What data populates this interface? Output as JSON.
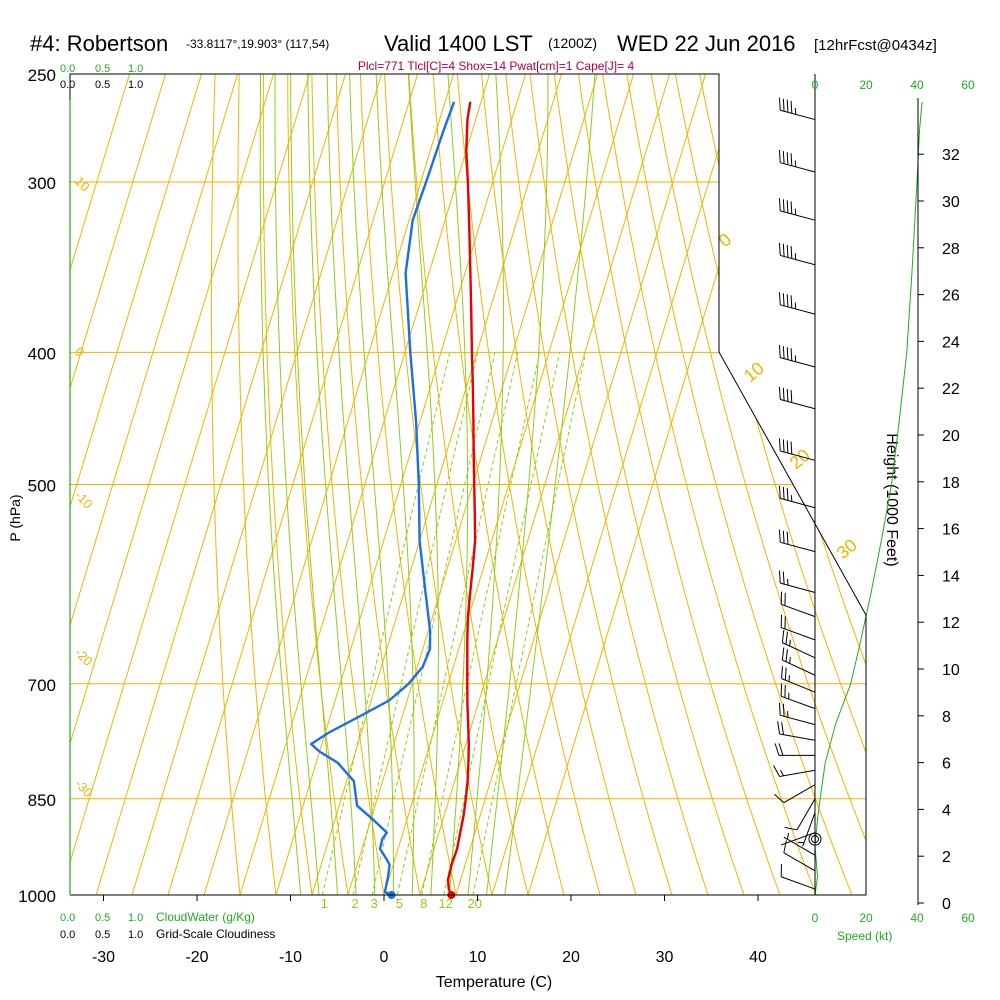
{
  "header": {
    "station": "#4: Robertson",
    "coords": "-33.8117°,19.903° (117,54)",
    "valid": "Valid 1400 LST",
    "utc": "(1200Z)",
    "date": "WED 22 Jun 2016",
    "forecast": "[12hrFcst@0434z]",
    "indices": "Plcl=771 Tlcl[C]=4 Shox=14 Pwat[cm]=1 Cape[J]= 4"
  },
  "colors": {
    "isotherm": "#f2b300",
    "dry_adiabat": "#f2b300",
    "moist_adiabat": "#8fcc1a",
    "mixing_ratio": "#8fcc1a",
    "temperature": "#e60000",
    "dewpoint": "#1a6ee6",
    "cloud": "#22aa22",
    "indices": "#b0003a"
  },
  "chart_data": {
    "type": "skew-t",
    "ylabel": "P (hPa)",
    "xlabel": "Temperature (C)",
    "right_label": "Height (1000 Feet)",
    "pressure_ticks": [
      250,
      300,
      400,
      500,
      700,
      850,
      1000
    ],
    "temperature_ticks": [
      -30,
      -20,
      -10,
      0,
      10,
      20,
      30,
      40
    ],
    "height_ticks": [
      0,
      2,
      4,
      6,
      8,
      10,
      12,
      14,
      16,
      18,
      20,
      22,
      24,
      26,
      28,
      30,
      32
    ],
    "xlim": [
      -34,
      46
    ],
    "plim": [
      250,
      1000
    ],
    "isotherms": [
      -140,
      -130,
      -120,
      -110,
      -100,
      -90,
      -80,
      -70,
      -60,
      -50,
      -40,
      -30,
      -20,
      -10,
      0,
      10,
      20,
      30,
      40
    ],
    "dry_adiabats_theta_c": [
      -40,
      -30,
      -20,
      -10,
      0,
      10,
      20,
      30,
      40,
      50,
      60,
      70,
      80,
      90,
      100,
      110,
      120,
      130,
      140,
      150,
      160,
      170,
      180
    ],
    "moist_adiabats_c": [
      -20,
      -15,
      -10,
      -5,
      0,
      5,
      10,
      15,
      20,
      25,
      30,
      35
    ],
    "mixing_ratios": [
      1,
      2,
      3,
      5,
      8,
      12,
      20
    ],
    "mixing_ratio_labels": [
      "1",
      "2",
      "3",
      "5",
      "8",
      "12",
      "20"
    ],
    "isotherm_labels": [
      {
        "t": -10,
        "text": "10"
      },
      {
        "t": -20,
        "text": "0"
      },
      {
        "t": -30,
        "text": "-10"
      },
      {
        "t": -40,
        "text": "-20"
      },
      {
        "t": -50,
        "text": "-30"
      }
    ],
    "theta_labels": [
      {
        "text": "0"
      },
      {
        "text": "10"
      },
      {
        "text": "20"
      },
      {
        "text": "30"
      }
    ],
    "temperature_profile": [
      {
        "p": 1000,
        "t": 18.7
      },
      {
        "p": 990,
        "t": 17.5
      },
      {
        "p": 975,
        "t": 16.5
      },
      {
        "p": 950,
        "t": 16.2
      },
      {
        "p": 925,
        "t": 16.4
      },
      {
        "p": 900,
        "t": 15.9
      },
      {
        "p": 875,
        "t": 15.4
      },
      {
        "p": 850,
        "t": 14.6
      },
      {
        "p": 825,
        "t": 13.6
      },
      {
        "p": 800,
        "t": 12.3
      },
      {
        "p": 775,
        "t": 10.8
      },
      {
        "p": 750,
        "t": 9.0
      },
      {
        "p": 725,
        "t": 7.1
      },
      {
        "p": 700,
        "t": 5.3
      },
      {
        "p": 675,
        "t": 3.5
      },
      {
        "p": 650,
        "t": 1.6
      },
      {
        "p": 625,
        "t": -0.2
      },
      {
        "p": 600,
        "t": -1.6
      },
      {
        "p": 575,
        "t": -3.0
      },
      {
        "p": 550,
        "t": -4.6
      },
      {
        "p": 525,
        "t": -7.0
      },
      {
        "p": 500,
        "t": -9.6
      },
      {
        "p": 475,
        "t": -12.3
      },
      {
        "p": 450,
        "t": -15.1
      },
      {
        "p": 425,
        "t": -18.1
      },
      {
        "p": 400,
        "t": -21.4
      },
      {
        "p": 375,
        "t": -24.8
      },
      {
        "p": 350,
        "t": -28.5
      },
      {
        "p": 325,
        "t": -32.5
      },
      {
        "p": 300,
        "t": -36.9
      },
      {
        "p": 285,
        "t": -39.9
      },
      {
        "p": 270,
        "t": -42.3
      },
      {
        "p": 262,
        "t": -43.0
      }
    ],
    "dewpoint_profile": [
      {
        "p": 1000,
        "t": 2.1
      },
      {
        "p": 995,
        "t": 0.0
      },
      {
        "p": 970,
        "t": -0.4
      },
      {
        "p": 950,
        "t": -1.0
      },
      {
        "p": 940,
        "t": -2.5
      },
      {
        "p": 925,
        "t": -5.0
      },
      {
        "p": 910,
        "t": -5.2
      },
      {
        "p": 900,
        "t": -4.5
      },
      {
        "p": 880,
        "t": -9.5
      },
      {
        "p": 860,
        "t": -15.0
      },
      {
        "p": 825,
        "t": -18.0
      },
      {
        "p": 800,
        "t": -24.0
      },
      {
        "p": 785,
        "t": -30.0
      },
      {
        "p": 775,
        "t": -33.0
      },
      {
        "p": 760,
        "t": -29.0
      },
      {
        "p": 740,
        "t": -22.0
      },
      {
        "p": 720,
        "t": -15.0
      },
      {
        "p": 700,
        "t": -11.0
      },
      {
        "p": 680,
        "t": -8.5
      },
      {
        "p": 660,
        "t": -8.0
      },
      {
        "p": 640,
        "t": -9.5
      },
      {
        "p": 600,
        "t": -14.0
      },
      {
        "p": 550,
        "t": -20.0
      },
      {
        "p": 500,
        "t": -25.0
      },
      {
        "p": 450,
        "t": -31.0
      },
      {
        "p": 400,
        "t": -38.5
      },
      {
        "p": 350,
        "t": -46.5
      },
      {
        "p": 320,
        "t": -49.0
      },
      {
        "p": 300,
        "t": -48.5
      },
      {
        "p": 275,
        "t": -48.0
      },
      {
        "p": 262,
        "t": -47.5
      }
    ],
    "wind_barbs": [
      {
        "p": 990,
        "dir": 290,
        "spd": 10
      },
      {
        "p": 960,
        "dir": 300,
        "spd": 8
      },
      {
        "p": 935,
        "dir": 300,
        "spd": 4
      },
      {
        "p": 900,
        "dir": 250,
        "spd": 2
      },
      {
        "p": 870,
        "dir": 200,
        "spd": 6
      },
      {
        "p": 850,
        "dir": 210,
        "spd": 8
      },
      {
        "p": 830,
        "dir": 240,
        "spd": 12
      },
      {
        "p": 810,
        "dir": 260,
        "spd": 14
      },
      {
        "p": 790,
        "dir": 270,
        "spd": 18
      },
      {
        "p": 770,
        "dir": 280,
        "spd": 22
      },
      {
        "p": 750,
        "dir": 285,
        "spd": 25
      },
      {
        "p": 730,
        "dir": 290,
        "spd": 25
      },
      {
        "p": 710,
        "dir": 292,
        "spd": 25
      },
      {
        "p": 690,
        "dir": 295,
        "spd": 25
      },
      {
        "p": 670,
        "dir": 295,
        "spd": 25
      },
      {
        "p": 650,
        "dir": 290,
        "spd": 20
      },
      {
        "p": 625,
        "dir": 290,
        "spd": 20
      },
      {
        "p": 600,
        "dir": 285,
        "spd": 25
      },
      {
        "p": 560,
        "dir": 285,
        "spd": 30
      },
      {
        "p": 520,
        "dir": 285,
        "spd": 35
      },
      {
        "p": 480,
        "dir": 285,
        "spd": 40
      },
      {
        "p": 440,
        "dir": 285,
        "spd": 40
      },
      {
        "p": 410,
        "dir": 285,
        "spd": 45
      },
      {
        "p": 375,
        "dir": 285,
        "spd": 45
      },
      {
        "p": 345,
        "dir": 285,
        "spd": 45
      },
      {
        "p": 320,
        "dir": 285,
        "spd": 45
      },
      {
        "p": 295,
        "dir": 285,
        "spd": 45
      },
      {
        "p": 270,
        "dir": 285,
        "spd": 45
      }
    ],
    "calm_at_p": 910,
    "speed_profile": [
      {
        "p": 1000,
        "s": 0
      },
      {
        "p": 970,
        "s": 1
      },
      {
        "p": 920,
        "s": 0
      },
      {
        "p": 880,
        "s": 1
      },
      {
        "p": 850,
        "s": 2
      },
      {
        "p": 800,
        "s": 4
      },
      {
        "p": 750,
        "s": 8
      },
      {
        "p": 700,
        "s": 14
      },
      {
        "p": 650,
        "s": 18
      },
      {
        "p": 600,
        "s": 22
      },
      {
        "p": 550,
        "s": 26
      },
      {
        "p": 500,
        "s": 30
      },
      {
        "p": 450,
        "s": 33
      },
      {
        "p": 400,
        "s": 36
      },
      {
        "p": 350,
        "s": 38
      },
      {
        "p": 300,
        "s": 40
      },
      {
        "p": 275,
        "s": 41
      },
      {
        "p": 262,
        "s": 42
      }
    ],
    "speed_axis": {
      "label": "Speed (kt)",
      "ticks": [
        0,
        20,
        40,
        60
      ]
    },
    "cloud_axis": {
      "ticks": [
        "0.0",
        "0.5",
        "1.0"
      ],
      "cloudwater_label": "CloudWater (g/Kg)",
      "cloudiness_label": "Grid-Scale Cloudiness"
    }
  }
}
